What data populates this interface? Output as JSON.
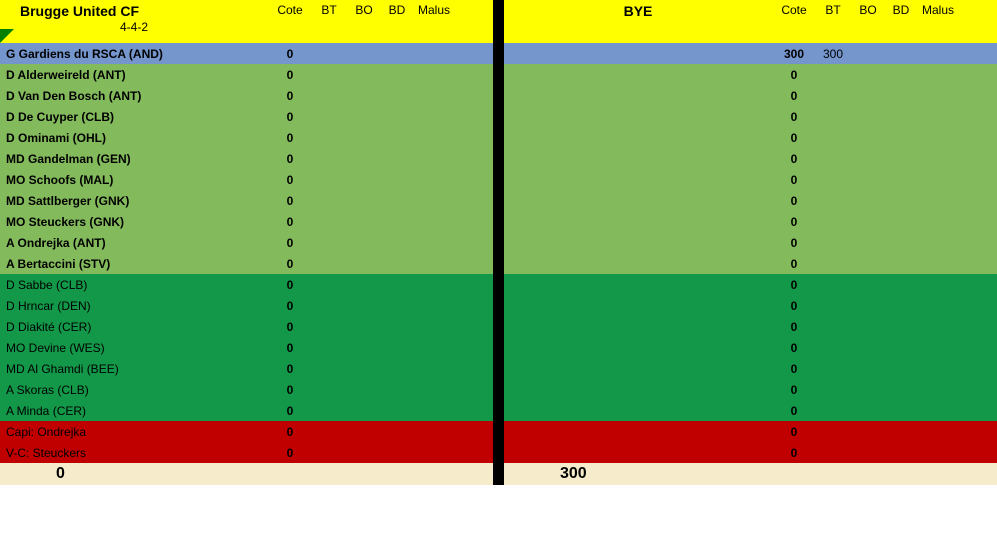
{
  "headers": {
    "cote": "Cote",
    "bt": "BT",
    "bo": "BO",
    "bd": "BD",
    "malus": "Malus"
  },
  "left": {
    "team_name": "Brugge United CF",
    "formation": "4-4-2",
    "rows": [
      {
        "type": "gk",
        "player": "G Gardiens du RSCA (AND)",
        "cote": "0",
        "bt": ""
      },
      {
        "type": "start",
        "player": "D Alderweireld (ANT)",
        "cote": "0",
        "bt": ""
      },
      {
        "type": "start",
        "player": "D Van Den Bosch (ANT)",
        "cote": "0",
        "bt": ""
      },
      {
        "type": "start",
        "player": "D De Cuyper (CLB)",
        "cote": "0",
        "bt": ""
      },
      {
        "type": "start",
        "player": "D Ominami (OHL)",
        "cote": "0",
        "bt": ""
      },
      {
        "type": "start",
        "player": "MD Gandelman (GEN)",
        "cote": "0",
        "bt": ""
      },
      {
        "type": "start",
        "player": "MO Schoofs (MAL)",
        "cote": "0",
        "bt": ""
      },
      {
        "type": "start",
        "player": "MD Sattlberger (GNK)",
        "cote": "0",
        "bt": ""
      },
      {
        "type": "start",
        "player": "MO Steuckers (GNK)",
        "cote": "0",
        "bt": ""
      },
      {
        "type": "start",
        "player": "A Ondrejka (ANT)",
        "cote": "0",
        "bt": ""
      },
      {
        "type": "start",
        "player": "A Bertaccini (STV)",
        "cote": "0",
        "bt": ""
      },
      {
        "type": "bench",
        "player": "D Sabbe (CLB)",
        "cote": "0",
        "bt": ""
      },
      {
        "type": "bench",
        "player": "D Hrncar (DEN)",
        "cote": "0",
        "bt": ""
      },
      {
        "type": "bench",
        "player": "D Diakité (CER)",
        "cote": "0",
        "bt": ""
      },
      {
        "type": "bench",
        "player": "MO Devine (WES)",
        "cote": "0",
        "bt": ""
      },
      {
        "type": "bench",
        "player": "MD Al Ghamdi (BEE)",
        "cote": "0",
        "bt": ""
      },
      {
        "type": "bench",
        "player": "A Skoras (CLB)",
        "cote": "0",
        "bt": ""
      },
      {
        "type": "bench",
        "player": "A Minda (CER)",
        "cote": "0",
        "bt": ""
      },
      {
        "type": "capt",
        "player": "Capi: Ondrejka",
        "cote": "0",
        "bt": ""
      },
      {
        "type": "capt",
        "player": "V-C: Steuckers",
        "cote": "0",
        "bt": ""
      }
    ],
    "total": "0"
  },
  "right": {
    "team_name": "BYE",
    "formation": "",
    "rows": [
      {
        "type": "gk",
        "player": "",
        "cote": "300",
        "bt": "300"
      },
      {
        "type": "start",
        "player": "",
        "cote": "0",
        "bt": ""
      },
      {
        "type": "start",
        "player": "",
        "cote": "0",
        "bt": ""
      },
      {
        "type": "start",
        "player": "",
        "cote": "0",
        "bt": ""
      },
      {
        "type": "start",
        "player": "",
        "cote": "0",
        "bt": ""
      },
      {
        "type": "start",
        "player": "",
        "cote": "0",
        "bt": ""
      },
      {
        "type": "start",
        "player": "",
        "cote": "0",
        "bt": ""
      },
      {
        "type": "start",
        "player": "",
        "cote": "0",
        "bt": ""
      },
      {
        "type": "start",
        "player": "",
        "cote": "0",
        "bt": ""
      },
      {
        "type": "start",
        "player": "",
        "cote": "0",
        "bt": ""
      },
      {
        "type": "start",
        "player": "",
        "cote": "0",
        "bt": ""
      },
      {
        "type": "bench",
        "player": "",
        "cote": "0",
        "bt": ""
      },
      {
        "type": "bench",
        "player": "",
        "cote": "0",
        "bt": ""
      },
      {
        "type": "bench",
        "player": "",
        "cote": "0",
        "bt": ""
      },
      {
        "type": "bench",
        "player": "",
        "cote": "0",
        "bt": ""
      },
      {
        "type": "bench",
        "player": "",
        "cote": "0",
        "bt": ""
      },
      {
        "type": "bench",
        "player": "",
        "cote": "0",
        "bt": ""
      },
      {
        "type": "bench",
        "player": "",
        "cote": "0",
        "bt": ""
      },
      {
        "type": "capt",
        "player": "",
        "cote": "0",
        "bt": ""
      },
      {
        "type": "capt",
        "player": "",
        "cote": "0",
        "bt": ""
      }
    ],
    "total": "300"
  },
  "colors": {
    "header_bg": "#FFFF00",
    "gk_bg": "#7596CD",
    "start_bg": "#83BA5C",
    "bench_bg": "#129848",
    "capt_bg": "#C00000",
    "total_bg": "#F6ECCC",
    "divider_bg": "#000000"
  }
}
